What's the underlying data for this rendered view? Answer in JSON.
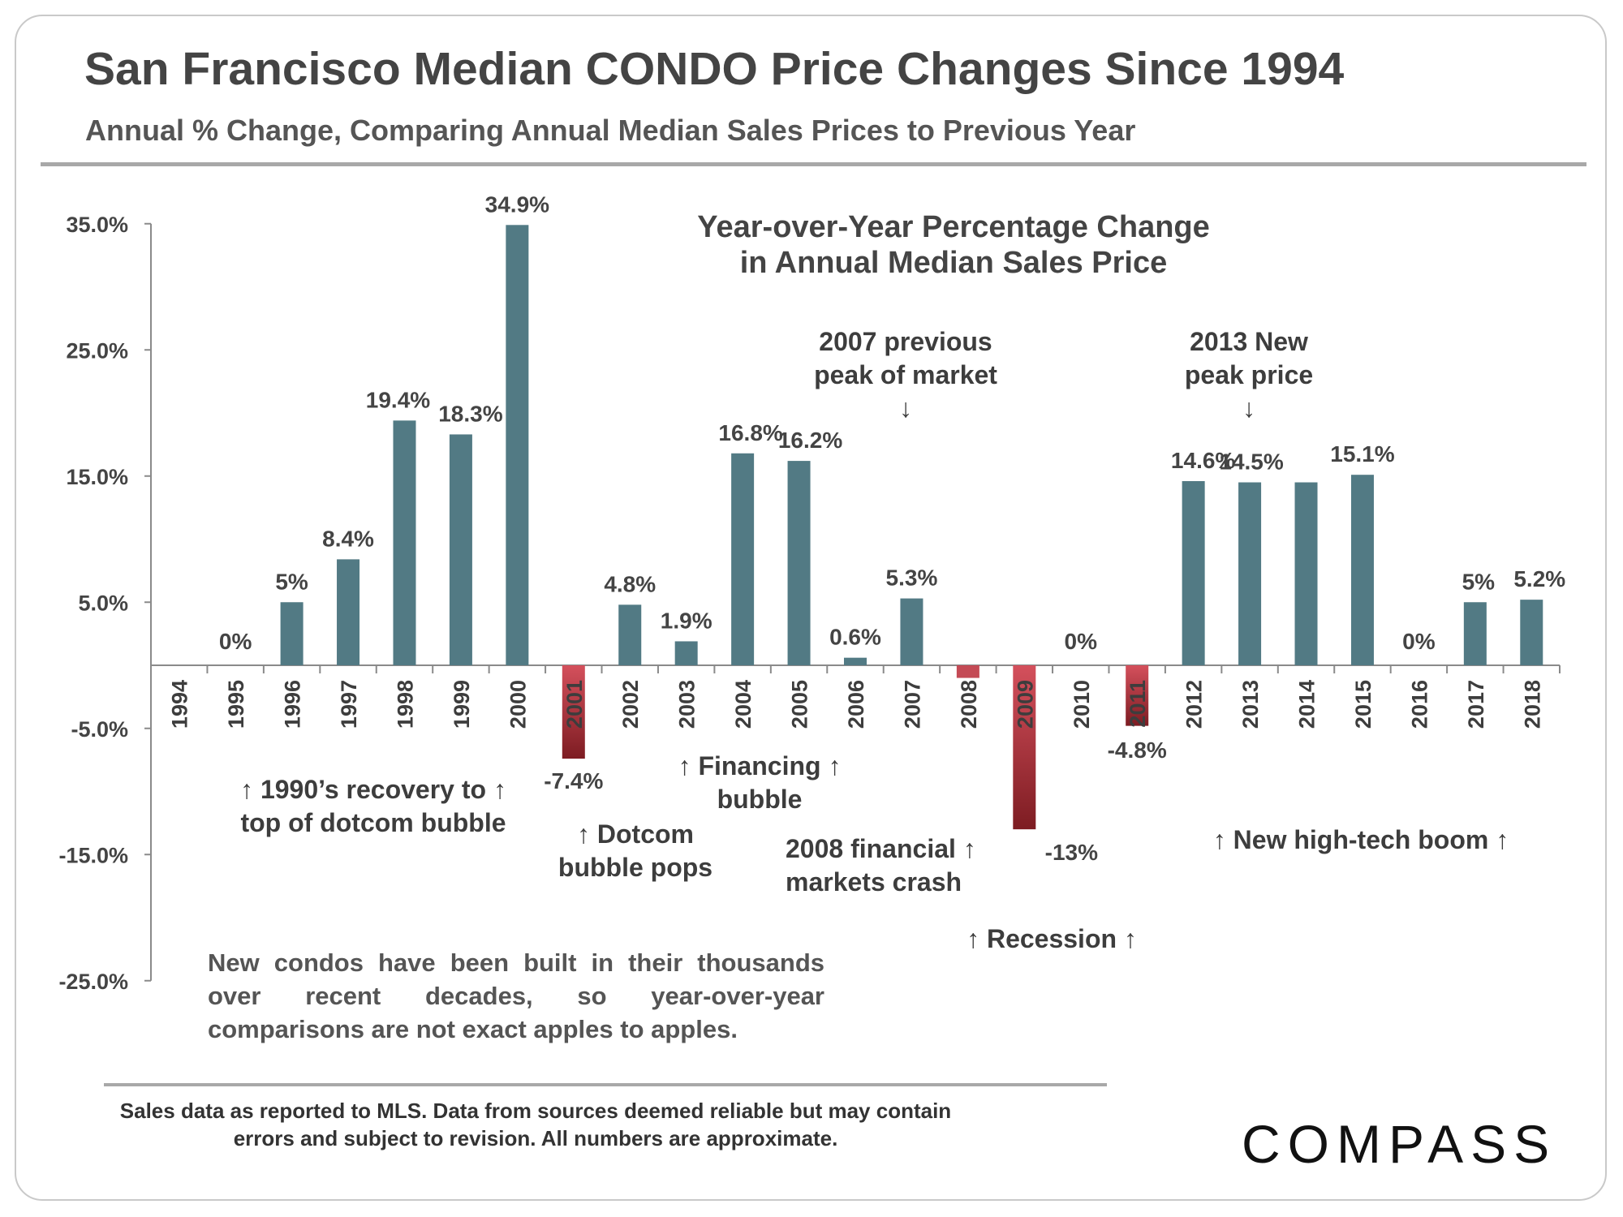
{
  "header": {
    "title": "San Francisco Median CONDO Price Changes Since 1994",
    "subtitle": "Annual % Change, Comparing Annual Median Sales Prices to Previous Year"
  },
  "chart_data": {
    "type": "bar",
    "title": "Year-over-Year Percentage Change in Annual Median Sales Price",
    "title_lines": [
      "Year-over-Year Percentage Change",
      "in Annual Median Sales Price"
    ],
    "xlabel": "",
    "ylabel": "",
    "ylim": [
      -25,
      35
    ],
    "yticks": [
      35,
      25,
      15,
      5,
      -5,
      -15,
      -25
    ],
    "ytick_labels": [
      "35.0%",
      "25.0%",
      "15.0%",
      "5.0%",
      "-5.0%",
      "-15.0%",
      "-25.0%"
    ],
    "categories": [
      "1994",
      "1995",
      "1996",
      "1997",
      "1998",
      "1999",
      "2000",
      "2001",
      "2002",
      "2003",
      "2004",
      "2005",
      "2006",
      "2007",
      "2008",
      "2009",
      "2010",
      "2011",
      "2012",
      "2013",
      "2014",
      "2015",
      "2016",
      "2017",
      "2018"
    ],
    "values": [
      0,
      0,
      5,
      8.4,
      19.4,
      18.3,
      34.9,
      -7.4,
      4.8,
      1.9,
      16.8,
      16.2,
      0.6,
      5.3,
      -1,
      -13,
      0,
      -4.8,
      14.6,
      14.5,
      14.5,
      15.1,
      0,
      5,
      5.2
    ],
    "data_labels": [
      "",
      "0%",
      "5%",
      "8.4%",
      "19.4%",
      "18.3%",
      "34.9%",
      "-7.4%",
      "4.8%",
      "1.9%",
      "16.8%",
      "16.2%",
      "0.6%",
      "5.3%",
      "",
      "-13%",
      "0%",
      "-4.8%",
      "14.6%",
      "14.5%",
      "",
      "15.1%",
      "0%",
      "5%",
      "5.2%"
    ],
    "colors": {
      "positive": "#527a84",
      "negative": "#c44a55",
      "negative_dark": "#7d1c22"
    },
    "annotations": [
      {
        "key": "peak2007",
        "lines": [
          "2007 previous",
          "peak of market",
          "↓"
        ]
      },
      {
        "key": "peak2013",
        "lines": [
          "2013 New",
          "peak price",
          "↓"
        ]
      },
      {
        "key": "dotcom_recovery",
        "lines": [
          "↑ 1990’s recovery to ↑",
          "top of dotcom bubble"
        ]
      },
      {
        "key": "dotcom_pops",
        "lines": [
          "↑ Dotcom",
          "bubble pops"
        ]
      },
      {
        "key": "financing",
        "lines": [
          "↑ Financing ↑",
          "bubble"
        ]
      },
      {
        "key": "crash2008",
        "lines": [
          "2008 financial ↑",
          "markets crash"
        ]
      },
      {
        "key": "recession",
        "lines": [
          "↑ Recession ↑"
        ]
      },
      {
        "key": "hightech",
        "lines": [
          "↑ New high-tech boom ↑"
        ]
      }
    ]
  },
  "note": "New condos have been built in their thousands over recent decades, so year-over-year comparisons are not exact apples to apples.",
  "footer": {
    "line1": "Sales data as reported to MLS. Data from sources deemed reliable but may contain",
    "line2": "errors and subject to revision. All numbers are approximate."
  },
  "logo": "COMPASS"
}
